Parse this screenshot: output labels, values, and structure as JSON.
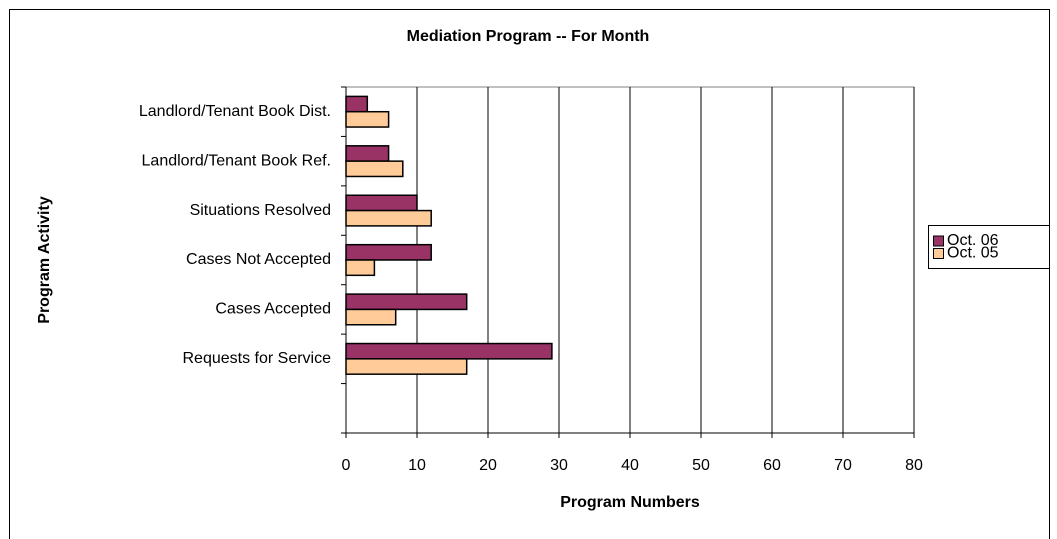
{
  "chart_data": {
    "type": "bar",
    "orientation": "horizontal",
    "title": "Mediation Program -- For Month",
    "x_label": "Program Numbers",
    "y_label": "Program Activity",
    "categories": [
      "Landlord/Tenant Book Dist.",
      "Landlord/Tenant Book Ref.",
      "Situations Resolved",
      "Cases Not Accepted",
      "Cases Accepted",
      "Requests for Service",
      null
    ],
    "series": [
      {
        "name": "Oct. 06",
        "color": "#993366",
        "values": [
          3,
          6,
          10,
          12,
          17,
          29,
          null
        ]
      },
      {
        "name": "Oct. 05",
        "color": "#FFCC99",
        "values": [
          6,
          8,
          12,
          4,
          7,
          17,
          null
        ]
      }
    ],
    "xlim": [
      0,
      80
    ],
    "xticks": [
      0,
      10,
      20,
      30,
      40,
      50,
      60,
      70,
      80
    ],
    "grid": true,
    "legend": "right"
  }
}
